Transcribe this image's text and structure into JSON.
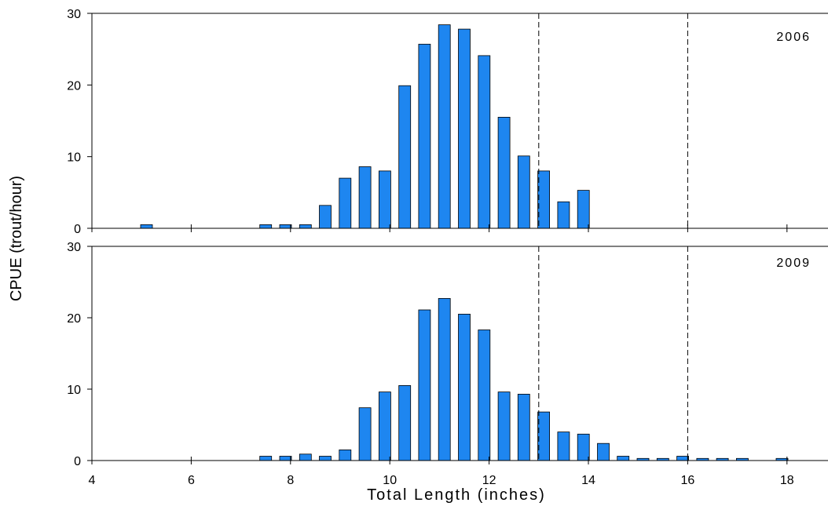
{
  "chart_data": {
    "type": "bar",
    "xlabel": "Total Length (inches)",
    "ylabel": "CPUE (trout/hour)",
    "xlim": [
      4,
      18.8
    ],
    "ylim": [
      0,
      30
    ],
    "x_ticks": [
      4,
      6,
      8,
      10,
      12,
      14,
      16,
      18
    ],
    "y_ticks": [
      0,
      10,
      20,
      30
    ],
    "reference_lines": [
      13,
      16
    ],
    "grid": false,
    "bar_color": "#1e86f0",
    "panels": [
      {
        "label": "2006",
        "bins": [
          5.1,
          7.5,
          7.9,
          8.3,
          8.7,
          9.1,
          9.5,
          9.9,
          10.3,
          10.7,
          11.1,
          11.5,
          11.9,
          12.3,
          12.7,
          13.1,
          13.5,
          13.9
        ],
        "values": [
          0.5,
          0.5,
          0.5,
          0.5,
          3.2,
          7.0,
          8.6,
          8.0,
          19.9,
          25.7,
          28.4,
          27.8,
          24.1,
          15.5,
          10.1,
          8.0,
          3.7,
          5.3
        ]
      },
      {
        "label": "2009",
        "bins": [
          7.5,
          7.9,
          8.3,
          8.7,
          9.1,
          9.5,
          9.9,
          10.3,
          10.7,
          11.1,
          11.5,
          11.9,
          12.3,
          12.7,
          13.1,
          13.5,
          13.9,
          14.3,
          14.7,
          15.1,
          15.5,
          15.9,
          16.3,
          16.7,
          17.1,
          17.9
        ],
        "values": [
          0.6,
          0.6,
          0.9,
          0.6,
          1.5,
          7.4,
          9.6,
          10.5,
          21.1,
          22.7,
          20.5,
          18.3,
          9.6,
          9.3,
          6.8,
          4.0,
          3.7,
          2.4,
          0.6,
          0.3,
          0.3,
          0.6,
          0.3,
          0.3,
          0.3,
          0.3
        ]
      }
    ]
  }
}
